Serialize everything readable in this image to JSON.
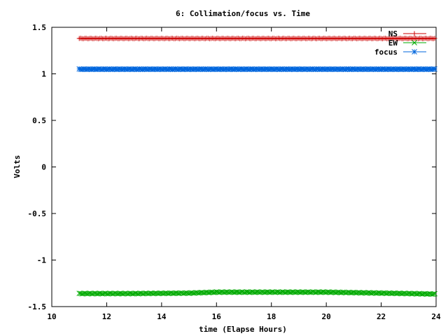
{
  "chart_data": {
    "type": "scatter",
    "title": "6: Collimation/focus vs. Time",
    "xlabel": "time (Elapse Hours)",
    "ylabel": "Volts",
    "xlim": [
      10,
      24
    ],
    "ylim": [
      -1.5,
      1.5
    ],
    "x_ticks": [
      "10",
      "12",
      "14",
      "16",
      "18",
      "20",
      "22",
      "24"
    ],
    "y_ticks": [
      "1.5",
      "1",
      "0.5",
      "0",
      "-0.5",
      "-1",
      "-1.5"
    ],
    "grid": false,
    "legend_position": "top-right",
    "x_range": [
      11.0,
      23.95
    ],
    "series": [
      {
        "name": "NS",
        "marker": "plus",
        "color": "#cc0000",
        "x": [
          11,
          13,
          15,
          17,
          19,
          21,
          23,
          23.95
        ],
        "y": [
          1.38,
          1.38,
          1.38,
          1.38,
          1.38,
          1.38,
          1.38,
          1.38
        ]
      },
      {
        "name": "EW",
        "marker": "cross",
        "color": "#00aa00",
        "x": [
          11,
          13,
          15,
          16,
          18,
          20,
          21,
          22,
          23,
          23.95
        ],
        "y": [
          -1.36,
          -1.36,
          -1.355,
          -1.345,
          -1.345,
          -1.345,
          -1.35,
          -1.355,
          -1.36,
          -1.365
        ]
      },
      {
        "name": "focus",
        "marker": "star",
        "color": "#0066dd",
        "x": [
          11,
          13,
          15,
          17,
          19,
          21,
          23,
          23.95
        ],
        "y": [
          1.05,
          1.05,
          1.05,
          1.05,
          1.05,
          1.05,
          1.05,
          1.05
        ]
      }
    ]
  }
}
